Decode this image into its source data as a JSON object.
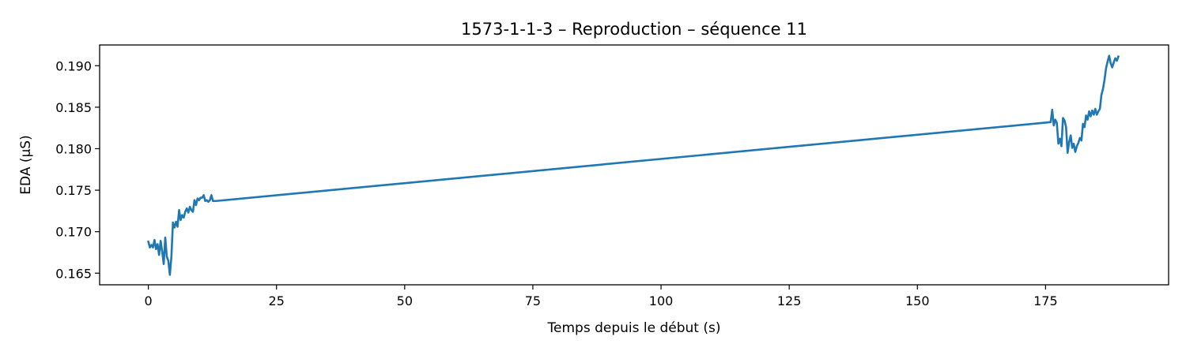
{
  "chart_data": {
    "type": "line",
    "title": "1573-1-1-3 – Reproduction – séquence 11",
    "xlabel": "Temps depuis le début (s)",
    "ylabel": "EDA (µS)",
    "xlim": [
      -9.5,
      199
    ],
    "ylim": [
      0.1636,
      0.1925
    ],
    "xticks": [
      0,
      25,
      50,
      75,
      100,
      125,
      150,
      175
    ],
    "yticks": [
      0.165,
      0.17,
      0.175,
      0.18,
      0.185,
      0.19
    ],
    "ytick_labels": [
      "0.165",
      "0.170",
      "0.175",
      "0.180",
      "0.185",
      "0.190"
    ],
    "grid": false,
    "legend": "none",
    "series": [
      {
        "color": "#1f77b4",
        "x": [
          0,
          0.3,
          0.6,
          0.9,
          1.2,
          1.5,
          1.8,
          2.1,
          2.4,
          2.7,
          3.0,
          3.3,
          3.6,
          3.9,
          4.2,
          4.5,
          4.8,
          5.1,
          5.4,
          5.7,
          6.0,
          6.3,
          6.6,
          6.9,
          7.2,
          7.5,
          7.8,
          8.1,
          8.4,
          8.7,
          9.0,
          9.3,
          9.6,
          9.9,
          10.2,
          10.5,
          10.8,
          11.1,
          11.4,
          11.7,
          12.0,
          12.3,
          12.6,
          13.2,
          176.0,
          176.3,
          176.6,
          176.9,
          177.2,
          177.5,
          177.8,
          178.1,
          178.4,
          178.7,
          179.0,
          179.3,
          179.6,
          179.9,
          180.2,
          180.5,
          180.8,
          181.1,
          181.4,
          181.7,
          182.0,
          182.3,
          182.6,
          182.9,
          183.2,
          183.5,
          183.8,
          184.1,
          184.4,
          184.7,
          185.0,
          185.3,
          185.6,
          185.9,
          186.2,
          186.5,
          186.8,
          187.1,
          187.4,
          187.7,
          188.0,
          188.3,
          188.6,
          188.9,
          189.2
        ],
        "y": [
          0.1688,
          0.1681,
          0.1684,
          0.1681,
          0.169,
          0.1679,
          0.1685,
          0.1672,
          0.1689,
          0.1676,
          0.1661,
          0.1693,
          0.167,
          0.1665,
          0.1648,
          0.167,
          0.1711,
          0.1705,
          0.1712,
          0.1706,
          0.1726,
          0.1714,
          0.172,
          0.1717,
          0.1724,
          0.1728,
          0.1723,
          0.173,
          0.1726,
          0.1724,
          0.1738,
          0.1732,
          0.174,
          0.1738,
          0.1741,
          0.1741,
          0.1744,
          0.1737,
          0.1738,
          0.1736,
          0.1738,
          0.1744,
          0.1737,
          0.1737,
          0.1832,
          0.1847,
          0.1828,
          0.1835,
          0.1831,
          0.1806,
          0.1812,
          0.1803,
          0.1837,
          0.1834,
          0.1826,
          0.1795,
          0.1808,
          0.1816,
          0.1801,
          0.1806,
          0.1796,
          0.1803,
          0.1807,
          0.1813,
          0.181,
          0.183,
          0.1826,
          0.184,
          0.1835,
          0.1845,
          0.1839,
          0.1846,
          0.1841,
          0.1848,
          0.1841,
          0.1845,
          0.1848,
          0.1865,
          0.1872,
          0.1883,
          0.1897,
          0.1905,
          0.1912,
          0.1903,
          0.1898,
          0.1904,
          0.1909,
          0.1906,
          0.1911
        ]
      }
    ]
  }
}
